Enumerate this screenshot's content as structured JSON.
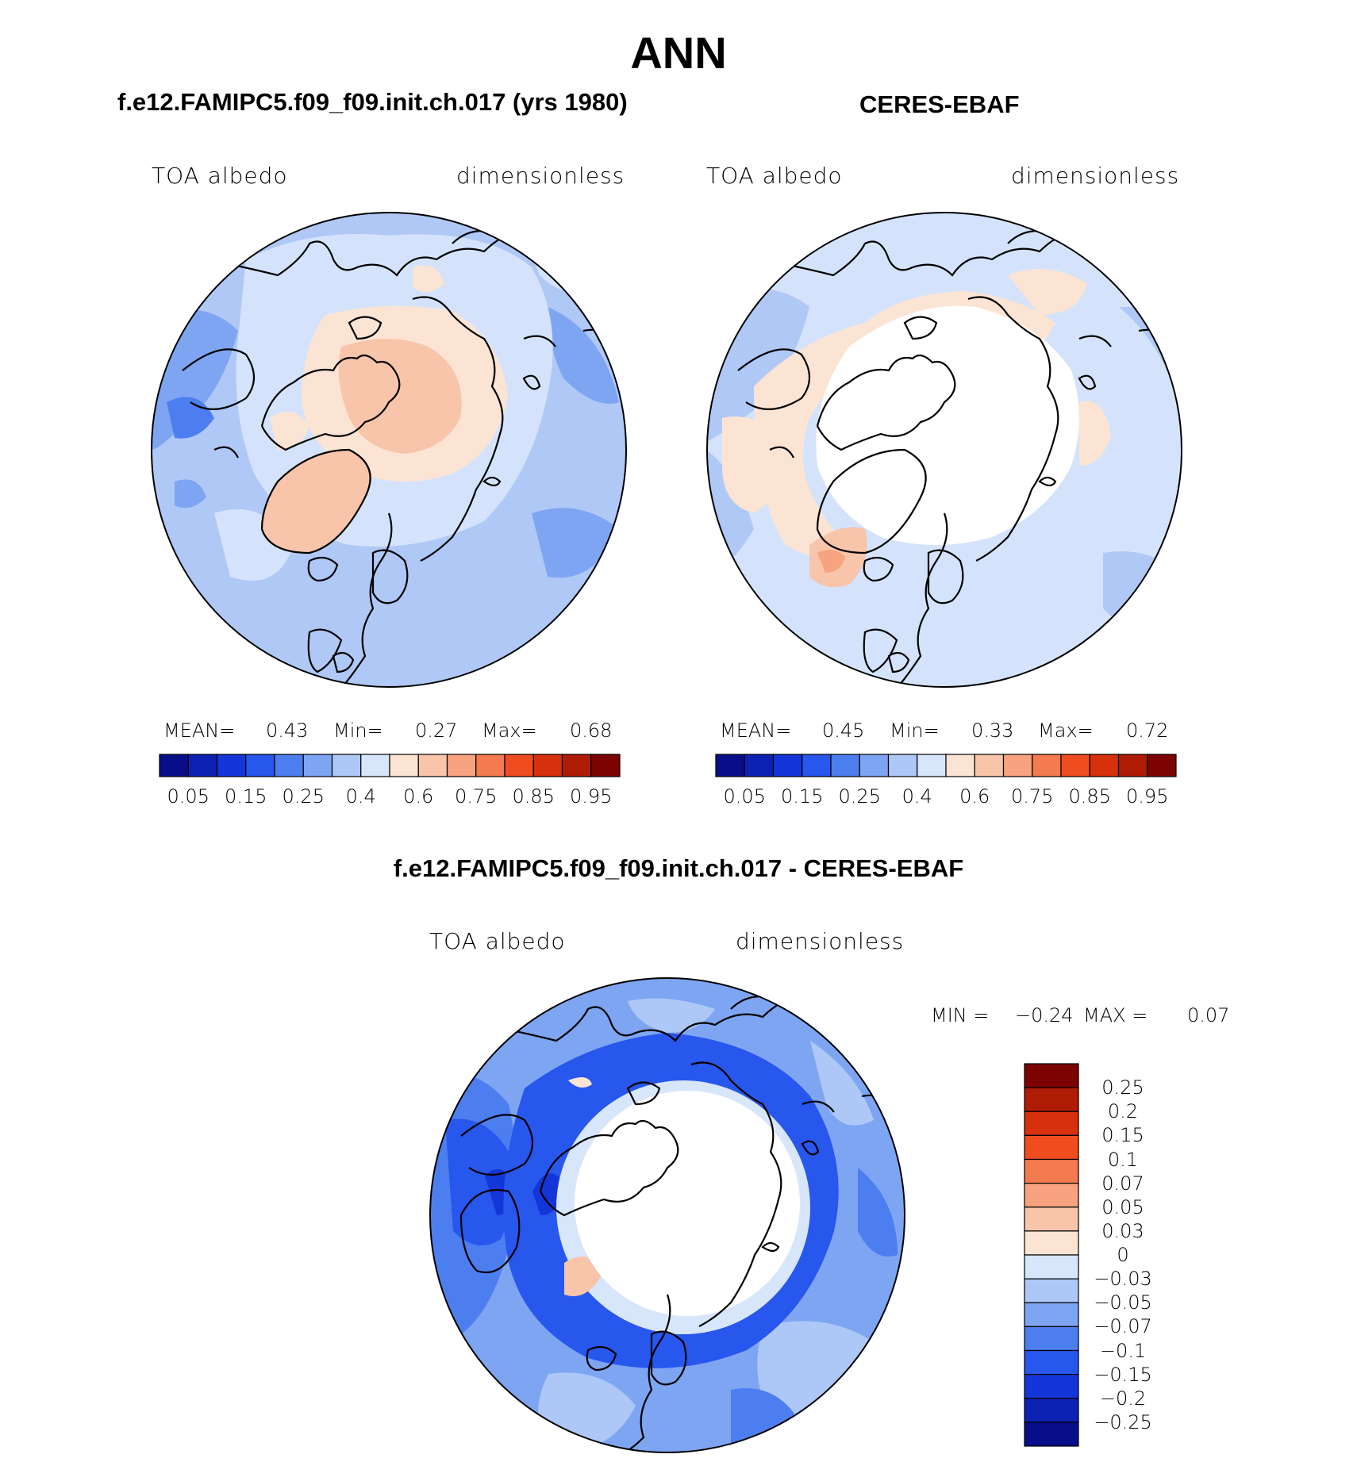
{
  "figure": {
    "season": "ANN",
    "variable": "TOA albedo",
    "units": "dimensionless"
  },
  "panels": {
    "model": {
      "title": "f.e12.FAMIPC5.f09_f09.init.ch.017 (yrs 1980)",
      "variable": "TOA albedo",
      "units": "dimensionless",
      "mean_label": "MEAN=",
      "mean": "0.43",
      "min_label": "Min=",
      "min": "0.27",
      "max_label": "Max=",
      "max": "0.68"
    },
    "obs": {
      "title": "CERES-EBAF",
      "variable": "TOA albedo",
      "units": "dimensionless",
      "mean_label": "MEAN=",
      "mean": "0.45",
      "min_label": "Min=",
      "min": "0.33",
      "max_label": "Max=",
      "max": "0.72"
    },
    "diff": {
      "title": "f.e12.FAMIPC5.f09_f09.init.ch.017 - CERES-EBAF",
      "variable": "TOA albedo",
      "units": "dimensionless",
      "min_label": "MIN =",
      "min": "−0.24",
      "max_label": "MAX =",
      "max": "0.07"
    }
  },
  "chart_data": [
    {
      "type": "heatmap",
      "projection": "north-polar-stereographic",
      "title": "f.e12.FAMIPC5.f09_f09.init.ch.017 (yrs 1980)",
      "field": "TOA albedo",
      "units": "dimensionless",
      "mean": 0.43,
      "min": 0.27,
      "max": 0.68,
      "colorbar": {
        "orientation": "horizontal",
        "tick_labels": [
          "0.05",
          "0.15",
          "0.25",
          "0.4",
          "0.6",
          "0.75",
          "0.85",
          "0.95"
        ],
        "colors": [
          "#080e8a",
          "#0c21b4",
          "#1436d8",
          "#2757ec",
          "#4d7ef0",
          "#7ea5f2",
          "#adc8f6",
          "#d8e6fb",
          "#fbe4d4",
          "#f8c5aa",
          "#f7a37f",
          "#f47b4f",
          "#ef4d1f",
          "#d6300c",
          "#b01b06",
          "#7d0303"
        ]
      }
    },
    {
      "type": "heatmap",
      "projection": "north-polar-stereographic",
      "title": "CERES-EBAF",
      "field": "TOA albedo",
      "units": "dimensionless",
      "mean": 0.45,
      "min": 0.33,
      "max": 0.72,
      "colorbar": {
        "orientation": "horizontal",
        "tick_labels": [
          "0.05",
          "0.15",
          "0.25",
          "0.4",
          "0.6",
          "0.75",
          "0.85",
          "0.95"
        ],
        "colors": [
          "#080e8a",
          "#0c21b4",
          "#1436d8",
          "#2757ec",
          "#4d7ef0",
          "#7ea5f2",
          "#adc8f6",
          "#d8e6fb",
          "#fbe4d4",
          "#f8c5aa",
          "#f7a37f",
          "#f47b4f",
          "#ef4d1f",
          "#d6300c",
          "#b01b06",
          "#7d0303"
        ]
      }
    },
    {
      "type": "heatmap",
      "projection": "north-polar-stereographic",
      "title": "f.e12.FAMIPC5.f09_f09.init.ch.017 - CERES-EBAF",
      "field": "TOA albedo difference",
      "units": "dimensionless",
      "min": -0.24,
      "max": 0.07,
      "colorbar": {
        "orientation": "vertical",
        "tick_labels": [
          "0.25",
          "0.2",
          "0.15",
          "0.1",
          "0.07",
          "0.05",
          "0.03",
          "0",
          "−0.03",
          "−0.05",
          "−0.07",
          "−0.1",
          "−0.15",
          "−0.2",
          "−0.25"
        ],
        "colors": [
          "#7d0303",
          "#b01b06",
          "#d6300c",
          "#ef4d1f",
          "#f47b4f",
          "#f7a37f",
          "#f8c5aa",
          "#fbe4d4",
          "#d8e6fb",
          "#adc8f6",
          "#7ea5f2",
          "#4d7ef0",
          "#2757ec",
          "#1436d8",
          "#0c21b4",
          "#080e8a"
        ]
      }
    }
  ]
}
